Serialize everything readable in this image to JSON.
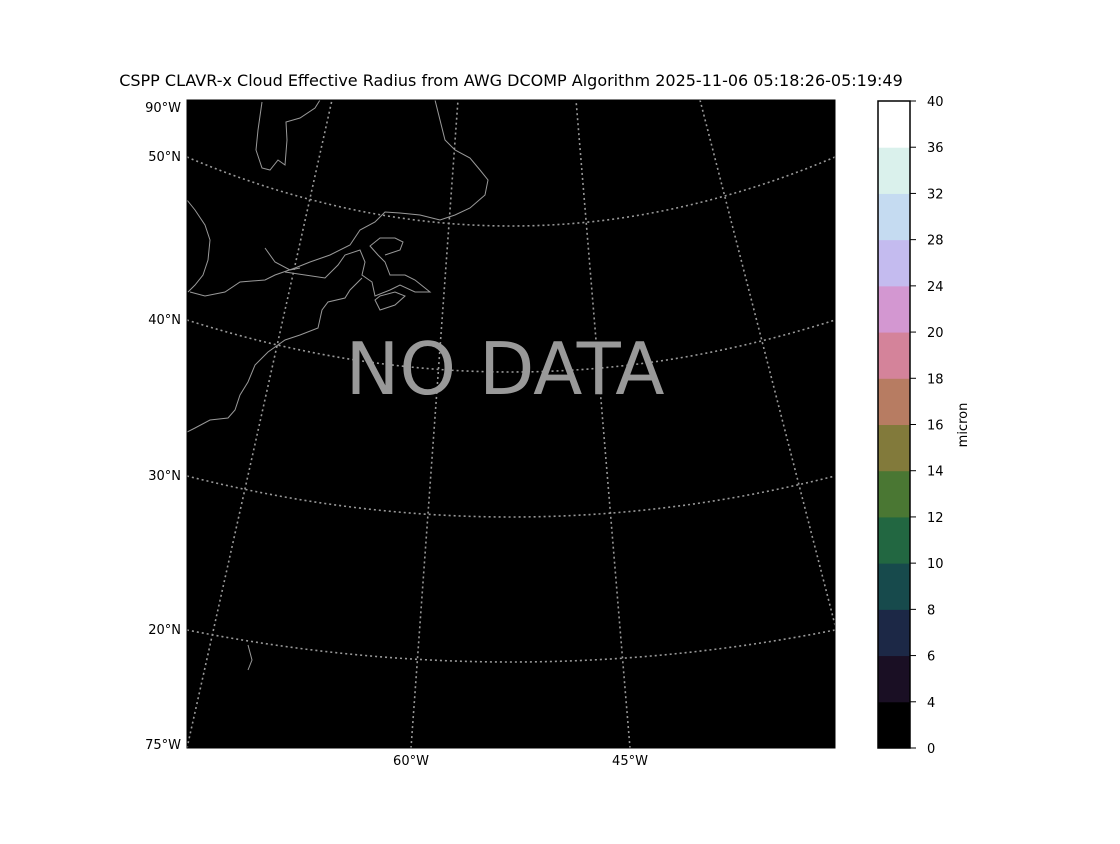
{
  "title": "CSPP CLAVR-x Cloud Effective Radius from AWG DCOMP Algorithm 2025-11-06 05:18:26-05:19:49",
  "no_data_label": "NO DATA",
  "map": {
    "background": "#000000",
    "grid_color": "#999999",
    "coast_color": "#999999",
    "lat_labels": [
      "50°N",
      "40°N",
      "30°N",
      "20°N"
    ],
    "corner_labels": {
      "top_left": "90°W",
      "bottom_left": "75°W"
    },
    "lon_labels": [
      "60°W",
      "45°W"
    ]
  },
  "colorbar": {
    "label": "micron",
    "boundaries": [
      0,
      4,
      6,
      8,
      10,
      12,
      14,
      16,
      18,
      20,
      24,
      28,
      32,
      36,
      40
    ],
    "tick_labels": [
      "0",
      "4",
      "6",
      "8",
      "10",
      "12",
      "14",
      "16",
      "18",
      "20",
      "24",
      "28",
      "32",
      "36",
      "40"
    ],
    "colors": [
      "#000000",
      "#1a0f24",
      "#1c2846",
      "#174a4c",
      "#226741",
      "#4a7733",
      "#827a3b",
      "#b77c62",
      "#d4839a",
      "#d397d1",
      "#c4bbef",
      "#c5dbf1",
      "#daf1ec",
      "#ffffff"
    ]
  }
}
